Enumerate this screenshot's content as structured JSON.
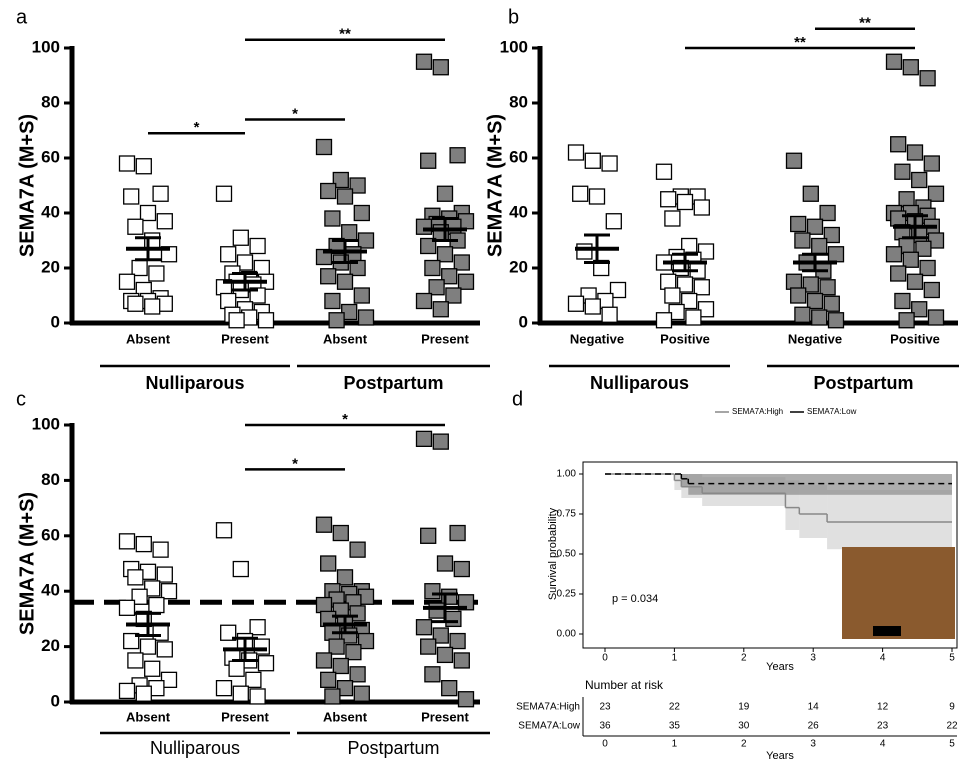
{
  "chart_data": [
    {
      "type": "dotplot",
      "panel": "a",
      "y_label": "SEMA7A (M+S)",
      "ylim": [
        0,
        100
      ],
      "yticks": [
        0,
        20,
        40,
        60,
        80,
        100
      ],
      "categories": [
        "Absent",
        "Present",
        "Absent",
        "Present"
      ],
      "supergroups": [
        "Nulliparous",
        "Postpartum"
      ],
      "colors": [
        "#ffffff",
        "#ffffff",
        "#7f7f7f",
        "#7f7f7f"
      ],
      "groups": [
        {
          "values": [
            58,
            57,
            47,
            46,
            40,
            37,
            35,
            30,
            25,
            20,
            18,
            15,
            12,
            9,
            8,
            8,
            7,
            7,
            6
          ],
          "mean": 27,
          "sem": 4
        },
        {
          "values": [
            47,
            31,
            28,
            25,
            22,
            20,
            18,
            16,
            15,
            15,
            14,
            13,
            12,
            10,
            8,
            5,
            4,
            3,
            2,
            1,
            1
          ],
          "mean": 15,
          "sem": 3
        },
        {
          "values": [
            64,
            52,
            50,
            48,
            46,
            40,
            38,
            33,
            30,
            28,
            25,
            24,
            22,
            20,
            17,
            15,
            10,
            8,
            4,
            2,
            1
          ],
          "mean": 26,
          "sem": 4
        },
        {
          "values": [
            95,
            93,
            61,
            59,
            47,
            40,
            39,
            38,
            37,
            36,
            35,
            35,
            33,
            30,
            28,
            25,
            22,
            20,
            17,
            15,
            13,
            10,
            8,
            5
          ],
          "mean": 34,
          "sem": 4
        }
      ],
      "comparisons": [
        {
          "label": "*",
          "between": [
            0,
            1
          ],
          "y": 69
        },
        {
          "label": "*",
          "between": [
            1,
            2
          ],
          "y": 74
        },
        {
          "label": "**",
          "between": [
            1,
            3
          ],
          "y": 103
        }
      ]
    },
    {
      "type": "dotplot",
      "panel": "b",
      "y_label": "SEMA7A (M+S)",
      "ylim": [
        0,
        100
      ],
      "yticks": [
        0,
        20,
        40,
        60,
        80,
        100
      ],
      "categories": [
        "Negative",
        "Positive",
        "Negative",
        "Positive"
      ],
      "supergroups": [
        "Nulliparous",
        "Postpartum"
      ],
      "colors": [
        "#ffffff",
        "#ffffff",
        "#7f7f7f",
        "#7f7f7f"
      ],
      "groups": [
        {
          "values": [
            62,
            59,
            58,
            47,
            46,
            37,
            26,
            20,
            12,
            10,
            8,
            7,
            6,
            3
          ],
          "mean": 27,
          "sem": 5
        },
        {
          "values": [
            55,
            46,
            46,
            45,
            44,
            42,
            38,
            28,
            26,
            24,
            23,
            22,
            20,
            19,
            15,
            14,
            13,
            10,
            8,
            5,
            4,
            2,
            1
          ],
          "mean": 22,
          "sem": 3
        },
        {
          "values": [
            59,
            47,
            40,
            36,
            35,
            32,
            30,
            28,
            25,
            22,
            19,
            15,
            14,
            13,
            10,
            8,
            7,
            3,
            2,
            1
          ],
          "mean": 22,
          "sem": 3
        },
        {
          "values": [
            95,
            93,
            89,
            65,
            62,
            58,
            55,
            52,
            47,
            45,
            42,
            40,
            40,
            39,
            38,
            37,
            35,
            33,
            32,
            30,
            28,
            27,
            25,
            23,
            20,
            18,
            15,
            12,
            8,
            5,
            2,
            1
          ],
          "mean": 35,
          "sem": 4
        }
      ],
      "comparisons": [
        {
          "label": "**",
          "between": [
            1,
            3
          ],
          "y": 100
        },
        {
          "label": "**",
          "between": [
            2,
            3
          ],
          "y": 107
        }
      ]
    },
    {
      "type": "dotplot",
      "panel": "c",
      "y_label": "SEMA7A (M+S)",
      "ylim": [
        0,
        100
      ],
      "yticks": [
        0,
        20,
        40,
        60,
        80,
        100
      ],
      "categories": [
        "Absent",
        "Present",
        "Absent",
        "Present"
      ],
      "supergroups": [
        "Nulliparous",
        "Postpartum"
      ],
      "colors": [
        "#ffffff",
        "#ffffff",
        "#7f7f7f",
        "#7f7f7f"
      ],
      "reference_line": 36,
      "groups": [
        {
          "values": [
            58,
            57,
            55,
            48,
            47,
            46,
            45,
            41,
            40,
            38,
            35,
            34,
            30,
            25,
            22,
            20,
            19,
            15,
            12,
            8,
            6,
            5,
            4,
            3
          ],
          "mean": 28,
          "sem": 4
        },
        {
          "values": [
            62,
            48,
            27,
            25,
            22,
            20,
            16,
            15,
            14,
            12,
            8,
            5,
            3,
            2
          ],
          "mean": 19,
          "sem": 4
        },
        {
          "values": [
            64,
            61,
            55,
            50,
            45,
            40,
            40,
            39,
            38,
            37,
            36,
            35,
            33,
            32,
            30,
            28,
            26,
            25,
            24,
            22,
            20,
            18,
            15,
            13,
            10,
            8,
            5,
            3,
            2
          ],
          "mean": 28,
          "sem": 3
        },
        {
          "values": [
            95,
            94,
            61,
            60,
            50,
            48,
            40,
            38,
            36,
            33,
            30,
            27,
            24,
            22,
            20,
            17,
            15,
            10,
            5,
            1
          ],
          "mean": 34,
          "sem": 5
        }
      ],
      "comparisons": [
        {
          "label": "*",
          "between": [
            1,
            2
          ],
          "y": 84
        },
        {
          "label": "*",
          "between": [
            1,
            3
          ],
          "y": 100
        }
      ]
    },
    {
      "type": "survival",
      "panel": "d",
      "y_label": "Survival probability",
      "x_label": "Years",
      "annotation": "p = 0.034",
      "xlim": [
        0,
        5
      ],
      "xticks": [
        0,
        1,
        2,
        3,
        4,
        5
      ],
      "ylim": [
        0,
        1
      ],
      "yticks": [
        {
          "value": 0,
          "label": "0.00"
        },
        {
          "value": 0.25,
          "label": "0.25"
        },
        {
          "value": 0.5,
          "label": "0.50"
        },
        {
          "value": 0.75,
          "label": "0.75"
        },
        {
          "value": 1,
          "label": "1.00"
        }
      ],
      "series": [
        {
          "name": "SEMA7A:High",
          "color": "#888888",
          "band_color": "#d3d3d3",
          "dashed": false,
          "x": [
            0,
            1,
            1.1,
            1.4,
            2.6,
            2.8,
            3.2
          ],
          "y": [
            1,
            0.96,
            0.92,
            0.88,
            0.79,
            0.75,
            0.7
          ],
          "lower": [
            1,
            0.9,
            0.85,
            0.8,
            0.65,
            0.6,
            0.53
          ],
          "upper": [
            1,
            1,
            1,
            0.98,
            0.96,
            0.93,
            0.9
          ]
        },
        {
          "name": "SEMA7A:Low",
          "color": "#000000",
          "band_color": "#8c8c8c",
          "dashed": true,
          "x": [
            0,
            1.1,
            1.2
          ],
          "y": [
            1,
            0.97,
            0.94
          ],
          "lower": [
            1,
            0.92,
            0.87
          ],
          "upper": [
            1,
            1,
            1
          ]
        }
      ],
      "risk_table": {
        "title": "Number at risk",
        "x_label": "Years",
        "rows": [
          {
            "name": "SEMA7A:High",
            "counts": [
              23,
              22,
              19,
              14,
              12,
              9
            ]
          },
          {
            "name": "SEMA7A:Low",
            "counts": [
              36,
              35,
              30,
              26,
              23,
              22
            ]
          }
        ]
      }
    }
  ]
}
